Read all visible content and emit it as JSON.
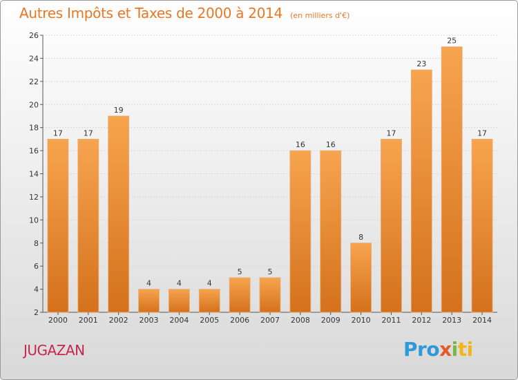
{
  "header": {
    "title": "Autres Impôts et Taxes de 2000 à 2014",
    "subtitle": "(en milliers d'€)"
  },
  "footer": {
    "commune": "JUGAZAN",
    "logo_parts": [
      "Pro",
      "x",
      "i",
      "ti"
    ]
  },
  "colors": {
    "title": "#e87722",
    "commune": "#c7254e",
    "bar_top": "#f7a44f",
    "bar_bottom": "#d4711c",
    "axis": "#555555"
  },
  "chart_data": {
    "type": "bar",
    "title": "Autres Impôts et Taxes de 2000 à 2014",
    "ylabel": "",
    "xlabel": "",
    "categories": [
      "2000",
      "2001",
      "2002",
      "2003",
      "2004",
      "2005",
      "2006",
      "2007",
      "2008",
      "2009",
      "2010",
      "2011",
      "2012",
      "2013",
      "2014"
    ],
    "values": [
      17,
      17,
      19,
      4,
      4,
      4,
      5,
      5,
      16,
      16,
      8,
      17,
      23,
      25,
      17
    ],
    "data_labels": [
      "17",
      "17",
      "19",
      "4",
      "4",
      "4",
      "5",
      "5",
      "16",
      "16",
      "8",
      "17",
      "23",
      "25",
      "17"
    ],
    "ylim": [
      2,
      26
    ],
    "yticks": [
      "2",
      "4",
      "6",
      "8",
      "10",
      "12",
      "14",
      "16",
      "18",
      "20",
      "22",
      "24",
      "26"
    ],
    "grid": true
  }
}
